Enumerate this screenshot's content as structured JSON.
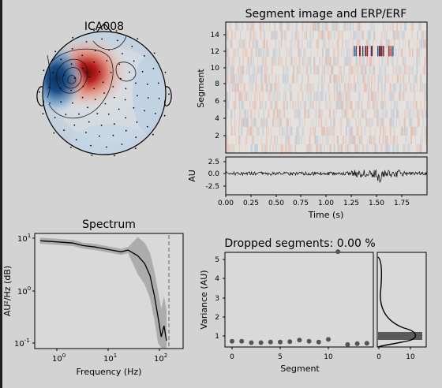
{
  "window": {
    "background": "#d3d3d3",
    "axes_face": "#d9d9d9"
  },
  "topomap": {
    "title": "ICA008",
    "colors": {
      "positive": "#b81d1d",
      "negative": "#174d87",
      "neutral": "#d9d9d9"
    }
  },
  "segment_image": {
    "title": "Segment image and ERP/ERF",
    "ylabel": "Segment",
    "yticks": [
      "2",
      "4",
      "6",
      "8",
      "10",
      "12",
      "14"
    ],
    "n_segments": 15
  },
  "erp": {
    "ylabel": "AU",
    "yticks": [
      "2.5",
      "0.0",
      "-2.5"
    ],
    "xticks": [
      "0.00",
      "0.25",
      "0.50",
      "0.75",
      "1.00",
      "1.25",
      "1.50",
      "1.75"
    ],
    "xlabel": "Time (s)"
  },
  "spectrum": {
    "title": "Spectrum",
    "ylabel": "AU²/Hz (dB)",
    "xlabel": "Frequency (Hz)",
    "yticks": [
      {
        "base": "10",
        "exp": "1"
      },
      {
        "base": "10",
        "exp": "0"
      },
      {
        "base": "10",
        "exp": "-1"
      }
    ],
    "xticks": [
      {
        "base": "10",
        "exp": "0"
      },
      {
        "base": "10",
        "exp": "1"
      },
      {
        "base": "10",
        "exp": "2"
      }
    ]
  },
  "dropped": {
    "title": "Dropped segments: 0.00 %",
    "ylabel": "Variance (AU)",
    "xlabel": "Segment",
    "yticks": [
      "1",
      "2",
      "3",
      "4",
      "5"
    ],
    "xticks": [
      "0",
      "5",
      "10"
    ],
    "hist_xticks": [
      "0",
      "10"
    ]
  },
  "chart_data": [
    {
      "type": "heatmap",
      "title": "Segment image and ERP/ERF",
      "ylabel": "Segment",
      "xlim": [
        0,
        2
      ],
      "ylim": [
        0,
        15
      ],
      "rows": 15,
      "note_rows": [
        12
      ]
    },
    {
      "type": "line",
      "ylabel": "AU",
      "xlabel": "Time (s)",
      "xlim": [
        0,
        2
      ],
      "ylim": [
        -4,
        4
      ]
    },
    {
      "type": "line",
      "title": "Spectrum",
      "xlabel": "Frequency (Hz)",
      "ylabel": "AU²/Hz (dB)",
      "x_scale": "log",
      "y_scale": "log",
      "x": [
        0.5,
        1,
        2,
        3,
        5,
        7,
        10,
        15,
        20,
        30,
        40,
        50,
        60,
        70,
        80,
        90,
        100
      ],
      "y": [
        10,
        9.5,
        9.0,
        8.0,
        7.5,
        7.0,
        6.5,
        6.0,
        6.5,
        5.0,
        3.5,
        2.0,
        0.8,
        0.3,
        0.12,
        0.2,
        0.1
      ],
      "xlim": [
        0.4,
        200
      ],
      "ylim": [
        0.07,
        14
      ]
    },
    {
      "type": "scatter",
      "title": "Dropped segments: 0.00 %",
      "xlabel": "Segment",
      "ylabel": "Variance (AU)",
      "x": [
        0,
        1,
        2,
        3,
        4,
        5,
        6,
        7,
        8,
        9,
        10,
        11,
        12,
        13,
        14
      ],
      "y": [
        0.72,
        0.72,
        0.65,
        0.65,
        0.68,
        0.68,
        0.7,
        0.78,
        0.72,
        0.68,
        0.82,
        5.4,
        0.55,
        0.6,
        0.62
      ],
      "xlim": [
        -1,
        15
      ],
      "ylim": [
        0.4,
        5.8
      ]
    }
  ]
}
